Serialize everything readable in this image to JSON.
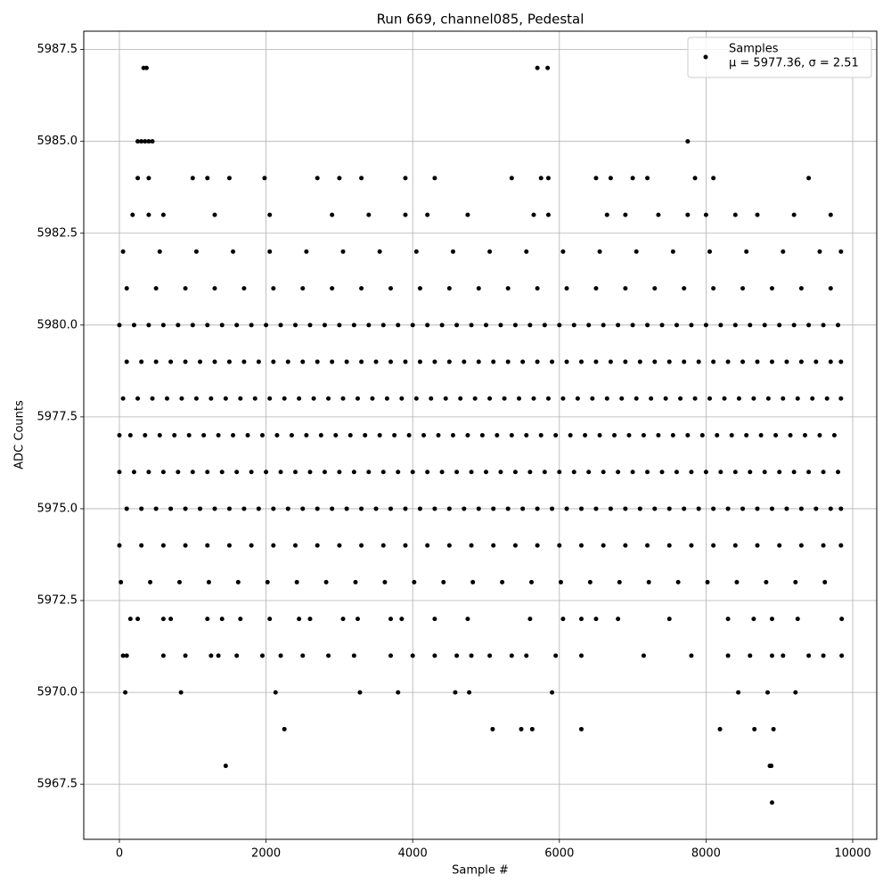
{
  "chart_data": {
    "type": "scatter",
    "title": "Run 669, channel085, Pedestal",
    "x_label": "Sample #",
    "y_label": "ADC Counts",
    "xlim": [
      -486,
      10328
    ],
    "ylim": [
      5966.0,
      5988.0
    ],
    "xticks": [
      0,
      2000,
      4000,
      6000,
      8000,
      10000
    ],
    "yticks": [
      {
        "value": 5967.5,
        "label": "5967.5"
      },
      {
        "value": 5970,
        "label": "5970.0"
      },
      {
        "value": 5972.5,
        "label": "5972.5"
      },
      {
        "value": 5975,
        "label": "5975.0"
      },
      {
        "value": 5977.5,
        "label": "5977.5"
      },
      {
        "value": 5980,
        "label": "5980.0"
      },
      {
        "value": 5982.5,
        "label": "5982.5"
      },
      {
        "value": 5985,
        "label": "5985.0"
      },
      {
        "value": 5987.5,
        "label": "5987.5"
      }
    ],
    "grid": true,
    "legend": "upper right",
    "legend_note": "μ = 5977.36, σ = 2.51",
    "x": [
      0,
      200,
      400,
      600,
      800,
      1000,
      1200,
      1400,
      1600,
      1800,
      2000,
      2200,
      2400,
      2600,
      2800,
      3000,
      3200,
      3400,
      3600,
      3800,
      4000,
      4200,
      4400,
      4600,
      4800,
      5000,
      5200,
      5400,
      5600,
      5800,
      6000,
      6200,
      6400,
      6600,
      6800,
      7000,
      7200,
      7400,
      7600,
      7800,
      8000,
      8200,
      8400,
      8600,
      8800,
      9000,
      9200,
      9400,
      9600,
      9800,
      100,
      300,
      500,
      700,
      900,
      1100,
      1300,
      1500,
      1700,
      1900,
      2100,
      2300,
      2500,
      2700,
      2900,
      3100,
      3300,
      3500,
      3700,
      3900,
      4100,
      4300,
      4500,
      4700,
      4900,
      5100,
      5300,
      5500,
      5700,
      5900,
      6100,
      6300,
      6500,
      6700,
      6900,
      7100,
      7300,
      7500,
      7700,
      7900,
      8100,
      8300,
      8500,
      8700,
      8900,
      9100,
      9300,
      9500,
      9700,
      9840,
      50,
      250,
      450,
      650,
      850,
      1050,
      1250,
      1450,
      1650,
      1850,
      2050,
      2250,
      2450,
      2650,
      2850,
      3050,
      3250,
      3450,
      3650,
      3850,
      4050,
      4250,
      4450,
      4650,
      4850,
      5050,
      5250,
      5450,
      5650,
      5850,
      6050,
      6250,
      6450,
      6650,
      6850,
      7050,
      7250,
      7450,
      7650,
      7850,
      8050,
      8250,
      8450,
      8650,
      8850,
      9050,
      9250,
      9450,
      9650,
      9840,
      0,
      150,
      350,
      550,
      750,
      950,
      1150,
      1350,
      1550,
      1750,
      1950,
      2150,
      2350,
      2550,
      2750,
      2950,
      3150,
      3350,
      3550,
      3750,
      3950,
      4150,
      4350,
      4550,
      4750,
      4950,
      5150,
      5350,
      5550,
      5750,
      5950,
      6150,
      6350,
      6550,
      6750,
      6950,
      7150,
      7350,
      7550,
      7750,
      7950,
      8150,
      8350,
      8550,
      8750,
      8950,
      9150,
      9350,
      9550,
      9750,
      0,
      200,
      400,
      600,
      800,
      1000,
      1200,
      1400,
      1600,
      1800,
      2000,
      2200,
      2400,
      2600,
      2800,
      3000,
      3200,
      3400,
      3600,
      3800,
      4000,
      4200,
      4400,
      4600,
      4800,
      5000,
      5200,
      5400,
      5600,
      5800,
      6000,
      6200,
      6400,
      6600,
      6800,
      7000,
      7200,
      7400,
      7600,
      7800,
      8000,
      8200,
      8400,
      8600,
      8800,
      9000,
      9200,
      9400,
      9600,
      9800,
      100,
      300,
      500,
      700,
      900,
      1100,
      1300,
      1500,
      1700,
      1900,
      2100,
      2300,
      2500,
      2700,
      2900,
      3100,
      3300,
      3500,
      3700,
      3900,
      4100,
      4300,
      4500,
      4700,
      4900,
      5100,
      5300,
      5500,
      5700,
      5900,
      6100,
      6300,
      6500,
      6700,
      6900,
      7100,
      7300,
      7500,
      7700,
      7900,
      8100,
      8300,
      8500,
      8700,
      8900,
      9100,
      9300,
      9500,
      9700,
      9840,
      0,
      300,
      600,
      900,
      1200,
      1500,
      1800,
      2100,
      2400,
      2700,
      3000,
      3300,
      3600,
      3900,
      4200,
      4500,
      4800,
      5100,
      5400,
      5700,
      6000,
      6300,
      6600,
      6900,
      7200,
      7500,
      7800,
      8100,
      8400,
      8700,
      9000,
      9300,
      9600,
      9840,
      20,
      420,
      820,
      1220,
      1620,
      2020,
      2420,
      2820,
      3220,
      3620,
      4020,
      4420,
      4820,
      5220,
      5620,
      6020,
      6420,
      6820,
      7220,
      7620,
      8020,
      8420,
      8820,
      9220,
      9620,
      100,
      500,
      900,
      1300,
      1700,
      2100,
      2500,
      2900,
      3300,
      3700,
      4100,
      4500,
      4900,
      5300,
      5700,
      6100,
      6500,
      6900,
      7300,
      7700,
      8100,
      8500,
      8900,
      9300,
      9700,
      50,
      550,
      1050,
      1550,
      2050,
      2550,
      3050,
      3550,
      4050,
      4550,
      5050,
      5550,
      6050,
      6550,
      7050,
      7550,
      8050,
      8550,
      9050,
      9550,
      9840,
      180,
      400,
      600,
      1300,
      2050,
      2900,
      3400,
      3900,
      4200,
      4750,
      5650,
      5850,
      6650,
      6900,
      7350,
      7750,
      8000,
      8400,
      8700,
      9200,
      9700,
      250,
      400,
      1000,
      1200,
      1500,
      1980,
      2700,
      3000,
      3300,
      3900,
      4300,
      5350,
      5750,
      5850,
      6500,
      6700,
      7000,
      7200,
      7850,
      8100,
      9400,
      250,
      300,
      350,
      400,
      450,
      7750,
      330,
      370,
      5700,
      5840,
      150,
      250,
      600,
      700,
      1200,
      1400,
      1650,
      2050,
      2450,
      2600,
      3050,
      3250,
      3700,
      3850,
      4300,
      4750,
      5600,
      6050,
      6300,
      6500,
      6800,
      7500,
      8300,
      8650,
      8900,
      9250,
      9850,
      50,
      100,
      600,
      900,
      1250,
      1350,
      1600,
      1950,
      2200,
      2500,
      2850,
      3200,
      3700,
      4000,
      4300,
      4600,
      4800,
      5050,
      5350,
      5550,
      5950,
      6300,
      7150,
      7800,
      8300,
      8600,
      8900,
      9050,
      9400,
      9600,
      9850,
      80,
      840,
      2130,
      3280,
      3800,
      4580,
      4770,
      5900,
      8440,
      8840,
      9220,
      2250,
      5090,
      5480,
      5630,
      6300,
      8190,
      8660,
      8920,
      1450,
      8870,
      8890,
      8900
    ],
    "series": [
      {
        "name": "Samples",
        "color": "#000000",
        "values": [
          5980,
          5980,
          5980,
          5980,
          5980,
          5980,
          5980,
          5980,
          5980,
          5980,
          5980,
          5980,
          5980,
          5980,
          5980,
          5980,
          5980,
          5980,
          5980,
          5980,
          5980,
          5980,
          5980,
          5980,
          5980,
          5980,
          5980,
          5980,
          5980,
          5980,
          5980,
          5980,
          5980,
          5980,
          5980,
          5980,
          5980,
          5980,
          5980,
          5980,
          5980,
          5980,
          5980,
          5980,
          5980,
          5980,
          5980,
          5980,
          5980,
          5980,
          5979,
          5979,
          5979,
          5979,
          5979,
          5979,
          5979,
          5979,
          5979,
          5979,
          5979,
          5979,
          5979,
          5979,
          5979,
          5979,
          5979,
          5979,
          5979,
          5979,
          5979,
          5979,
          5979,
          5979,
          5979,
          5979,
          5979,
          5979,
          5979,
          5979,
          5979,
          5979,
          5979,
          5979,
          5979,
          5979,
          5979,
          5979,
          5979,
          5979,
          5979,
          5979,
          5979,
          5979,
          5979,
          5979,
          5979,
          5979,
          5979,
          5979,
          5978,
          5978,
          5978,
          5978,
          5978,
          5978,
          5978,
          5978,
          5978,
          5978,
          5978,
          5978,
          5978,
          5978,
          5978,
          5978,
          5978,
          5978,
          5978,
          5978,
          5978,
          5978,
          5978,
          5978,
          5978,
          5978,
          5978,
          5978,
          5978,
          5978,
          5978,
          5978,
          5978,
          5978,
          5978,
          5978,
          5978,
          5978,
          5978,
          5978,
          5978,
          5978,
          5978,
          5978,
          5978,
          5978,
          5978,
          5978,
          5978,
          5978,
          5977,
          5977,
          5977,
          5977,
          5977,
          5977,
          5977,
          5977,
          5977,
          5977,
          5977,
          5977,
          5977,
          5977,
          5977,
          5977,
          5977,
          5977,
          5977,
          5977,
          5977,
          5977,
          5977,
          5977,
          5977,
          5977,
          5977,
          5977,
          5977,
          5977,
          5977,
          5977,
          5977,
          5977,
          5977,
          5977,
          5977,
          5977,
          5977,
          5977,
          5977,
          5977,
          5977,
          5977,
          5977,
          5977,
          5977,
          5977,
          5977,
          5977,
          5976,
          5976,
          5976,
          5976,
          5976,
          5976,
          5976,
          5976,
          5976,
          5976,
          5976,
          5976,
          5976,
          5976,
          5976,
          5976,
          5976,
          5976,
          5976,
          5976,
          5976,
          5976,
          5976,
          5976,
          5976,
          5976,
          5976,
          5976,
          5976,
          5976,
          5976,
          5976,
          5976,
          5976,
          5976,
          5976,
          5976,
          5976,
          5976,
          5976,
          5976,
          5976,
          5976,
          5976,
          5976,
          5976,
          5976,
          5976,
          5976,
          5976,
          5975,
          5975,
          5975,
          5975,
          5975,
          5975,
          5975,
          5975,
          5975,
          5975,
          5975,
          5975,
          5975,
          5975,
          5975,
          5975,
          5975,
          5975,
          5975,
          5975,
          5975,
          5975,
          5975,
          5975,
          5975,
          5975,
          5975,
          5975,
          5975,
          5975,
          5975,
          5975,
          5975,
          5975,
          5975,
          5975,
          5975,
          5975,
          5975,
          5975,
          5975,
          5975,
          5975,
          5975,
          5975,
          5975,
          5975,
          5975,
          5975,
          5975,
          5974,
          5974,
          5974,
          5974,
          5974,
          5974,
          5974,
          5974,
          5974,
          5974,
          5974,
          5974,
          5974,
          5974,
          5974,
          5974,
          5974,
          5974,
          5974,
          5974,
          5974,
          5974,
          5974,
          5974,
          5974,
          5974,
          5974,
          5974,
          5974,
          5974,
          5974,
          5974,
          5974,
          5974,
          5973,
          5973,
          5973,
          5973,
          5973,
          5973,
          5973,
          5973,
          5973,
          5973,
          5973,
          5973,
          5973,
          5973,
          5973,
          5973,
          5973,
          5973,
          5973,
          5973,
          5973,
          5973,
          5973,
          5973,
          5973,
          5981,
          5981,
          5981,
          5981,
          5981,
          5981,
          5981,
          5981,
          5981,
          5981,
          5981,
          5981,
          5981,
          5981,
          5981,
          5981,
          5981,
          5981,
          5981,
          5981,
          5981,
          5981,
          5981,
          5981,
          5981,
          5982,
          5982,
          5982,
          5982,
          5982,
          5982,
          5982,
          5982,
          5982,
          5982,
          5982,
          5982,
          5982,
          5982,
          5982,
          5982,
          5982,
          5982,
          5982,
          5982,
          5982,
          5983,
          5983,
          5983,
          5983,
          5983,
          5983,
          5983,
          5983,
          5983,
          5983,
          5983,
          5983,
          5983,
          5983,
          5983,
          5983,
          5983,
          5983,
          5983,
          5983,
          5983,
          5984,
          5984,
          5984,
          5984,
          5984,
          5984,
          5984,
          5984,
          5984,
          5984,
          5984,
          5984,
          5984,
          5984,
          5984,
          5984,
          5984,
          5984,
          5984,
          5984,
          5984,
          5985,
          5985,
          5985,
          5985,
          5985,
          5985,
          5987,
          5987,
          5987,
          5987,
          5972,
          5972,
          5972,
          5972,
          5972,
          5972,
          5972,
          5972,
          5972,
          5972,
          5972,
          5972,
          5972,
          5972,
          5972,
          5972,
          5972,
          5972,
          5972,
          5972,
          5972,
          5972,
          5972,
          5972,
          5972,
          5972,
          5972,
          5971,
          5971,
          5971,
          5971,
          5971,
          5971,
          5971,
          5971,
          5971,
          5971,
          5971,
          5971,
          5971,
          5971,
          5971,
          5971,
          5971,
          5971,
          5971,
          5971,
          5971,
          5971,
          5971,
          5971,
          5971,
          5971,
          5971,
          5971,
          5971,
          5971,
          5971,
          5970,
          5970,
          5970,
          5970,
          5970,
          5970,
          5970,
          5970,
          5970,
          5970,
          5970,
          5969,
          5969,
          5969,
          5969,
          5969,
          5969,
          5969,
          5969,
          5968,
          5968,
          5968,
          5967
        ]
      }
    ]
  }
}
